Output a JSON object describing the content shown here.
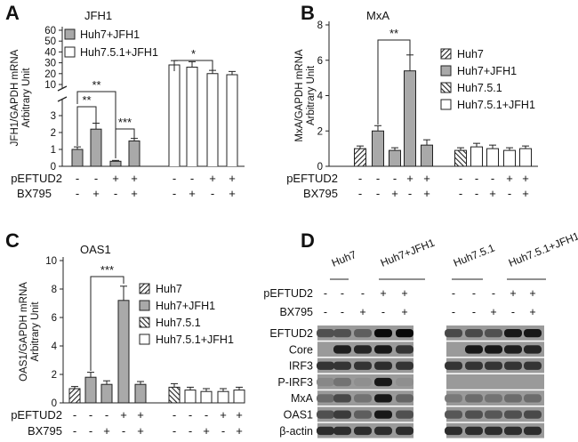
{
  "panels": {
    "a": {
      "letter": "A",
      "title": "JFH1"
    },
    "b": {
      "letter": "B",
      "title": "MxA"
    },
    "c": {
      "letter": "C",
      "title": "OAS1"
    },
    "d": {
      "letter": "D"
    }
  },
  "colors": {
    "huh7_jfh1": "#a9a9a9",
    "huh751_jfh1": "#ffffff",
    "outline": "#222222",
    "hatch": "#222222",
    "blot_bg": "#9a9a9a"
  },
  "chart_data": [
    {
      "panel": "A",
      "type": "bar",
      "title": "JFH1",
      "ylabel": "JFH1/GAPDH mRNA\nArbitrary Unit",
      "y_axis_break": true,
      "ylim_lower": [
        0,
        3
      ],
      "ylim_upper": [
        10,
        60
      ],
      "yticks_lower": [
        "0",
        "1",
        "2",
        "3"
      ],
      "yticks_upper": [
        "10",
        "20",
        "30",
        "40",
        "50",
        "60"
      ],
      "conditions": {
        "pEFTUD2": [
          "-",
          "-",
          "+",
          "+",
          "-",
          "-",
          "+",
          "+"
        ],
        "BX795": [
          "-",
          "+",
          "-",
          "+",
          "-",
          "+",
          "-",
          "+"
        ]
      },
      "legend_loc": "top-left",
      "series": [
        {
          "name": "Huh7+JFH1",
          "pattern": "gray",
          "values": [
            1.0,
            2.2,
            0.3,
            1.5
          ],
          "errors": [
            0.15,
            0.35,
            0.05,
            0.15
          ]
        },
        {
          "name": "Huh7.5.1+JFH1",
          "pattern": "white",
          "values": [
            28,
            26,
            20,
            19
          ],
          "errors": [
            4,
            5,
            3,
            3
          ]
        }
      ],
      "significance": [
        {
          "label": "**",
          "from": 0,
          "to": 1
        },
        {
          "label": "**",
          "from": 0,
          "to": 2
        },
        {
          "label": "***",
          "from": 2,
          "to": 3
        },
        {
          "label": "*",
          "from": 4,
          "to": 6
        }
      ]
    },
    {
      "panel": "B",
      "type": "bar",
      "title": "MxA",
      "ylabel": "MxA/GAPDH mRNA\nArbitrary Unit",
      "ylim": [
        0,
        8
      ],
      "yticks": [
        "0",
        "2",
        "4",
        "6",
        "8"
      ],
      "conditions": {
        "pEFTUD2": [
          "-",
          "-",
          "-",
          "+",
          "+",
          "-",
          "-",
          "-",
          "+",
          "+"
        ],
        "BX795": [
          "-",
          "-",
          "+",
          "-",
          "+",
          "-",
          "-",
          "+",
          "-",
          "+"
        ]
      },
      "legend_loc": "right",
      "series": [
        {
          "name": "Huh7",
          "pattern": "hatch",
          "values": [
            1.0
          ],
          "errors": [
            0.15
          ]
        },
        {
          "name": "Huh7+JFH1",
          "pattern": "gray",
          "values": [
            2.0,
            0.9,
            5.4,
            1.2
          ],
          "errors": [
            0.3,
            0.15,
            0.9,
            0.3
          ]
        },
        {
          "name": "Huh7.5.1",
          "pattern": "hatch2",
          "values": [
            0.9
          ],
          "errors": [
            0.15
          ]
        },
        {
          "name": "Huh7.5.1+JFH1",
          "pattern": "white",
          "values": [
            1.1,
            1.0,
            0.9,
            1.0
          ],
          "errors": [
            0.2,
            0.2,
            0.15,
            0.15
          ]
        }
      ],
      "significance": [
        {
          "label": "**",
          "from": 1,
          "to": 3
        }
      ]
    },
    {
      "panel": "C",
      "type": "bar",
      "title": "OAS1",
      "ylabel": "OAS1/GAPDH mRNA\nArbitrary Unit",
      "ylim": [
        0,
        10
      ],
      "yticks": [
        "0",
        "2",
        "4",
        "6",
        "8",
        "10"
      ],
      "conditions": {
        "pEFTUD2": [
          "-",
          "-",
          "-",
          "+",
          "+",
          "-",
          "-",
          "-",
          "+",
          "+"
        ],
        "BX795": [
          "-",
          "-",
          "+",
          "-",
          "+",
          "-",
          "-",
          "+",
          "-",
          "+"
        ]
      },
      "legend_loc": "right",
      "series": [
        {
          "name": "Huh7",
          "pattern": "hatch",
          "values": [
            1.0
          ],
          "errors": [
            0.15
          ]
        },
        {
          "name": "Huh7+JFH1",
          "pattern": "gray",
          "values": [
            1.8,
            1.3,
            7.2,
            1.3
          ],
          "errors": [
            0.35,
            0.25,
            1.0,
            0.2
          ]
        },
        {
          "name": "Huh7.5.1",
          "pattern": "hatch2",
          "values": [
            1.1
          ],
          "errors": [
            0.25
          ]
        },
        {
          "name": "Huh7.5.1+JFH1",
          "pattern": "white",
          "values": [
            0.9,
            0.8,
            0.8,
            0.9
          ],
          "errors": [
            0.2,
            0.2,
            0.2,
            0.2
          ]
        }
      ],
      "significance": [
        {
          "label": "***",
          "from": 1,
          "to": 3
        }
      ]
    }
  ],
  "blot": {
    "groups": [
      "Huh7",
      "Huh7+JFH1",
      "Huh7.5.1",
      "Huh7.5.1+JFH1"
    ],
    "row_labels": [
      "pEFTUD2",
      "BX795"
    ],
    "pEFTUD2": [
      "-",
      "-",
      "-",
      "+",
      "+",
      "-",
      "-",
      "-",
      "+",
      "+"
    ],
    "BX795": [
      "-",
      "-",
      "+",
      "-",
      "+",
      "-",
      "-",
      "+",
      "-",
      "+"
    ],
    "rows": [
      {
        "label": "EFTUD2",
        "intensity": [
          0.5,
          0.5,
          0.4,
          1.0,
          1.0,
          0.55,
          0.55,
          0.5,
          0.9,
          0.9
        ]
      },
      {
        "label": "Core",
        "intensity": [
          0.0,
          0.85,
          0.8,
          0.9,
          0.7,
          0.0,
          0.9,
          0.9,
          0.85,
          0.8
        ]
      },
      {
        "label": "IRF3",
        "intensity": [
          0.7,
          0.7,
          0.7,
          0.75,
          0.7,
          0.7,
          0.7,
          0.7,
          0.7,
          0.7
        ]
      },
      {
        "label": "P-IRF3",
        "intensity": [
          0.1,
          0.25,
          0.05,
          0.9,
          0.05,
          0.0,
          0.0,
          0.0,
          0.0,
          0.0
        ]
      },
      {
        "label": "MxA",
        "intensity": [
          0.3,
          0.55,
          0.25,
          0.9,
          0.35,
          0.2,
          0.3,
          0.25,
          0.3,
          0.3
        ]
      },
      {
        "label": "OAS1",
        "intensity": [
          0.5,
          0.65,
          0.4,
          0.9,
          0.5,
          0.45,
          0.5,
          0.45,
          0.5,
          0.55
        ]
      },
      {
        "label": "β-actin",
        "intensity": [
          0.75,
          0.75,
          0.75,
          0.75,
          0.75,
          0.75,
          0.75,
          0.75,
          0.75,
          0.75
        ]
      }
    ]
  }
}
